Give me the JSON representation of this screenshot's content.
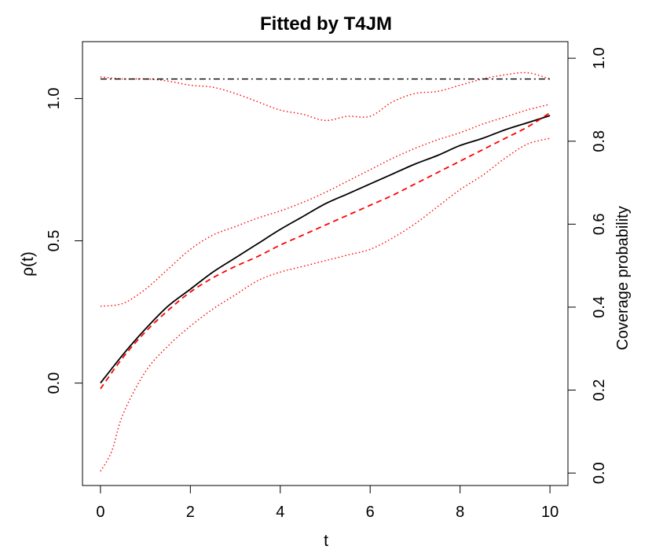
{
  "chart_data": {
    "type": "line",
    "title": "Fitted by T4JM",
    "xlabel": "t",
    "ylabel": "ρ(t)",
    "y2label": "Coverage probability",
    "xlim": [
      -0.4,
      10.4
    ],
    "ylim": [
      -0.36,
      1.2
    ],
    "y2lim": [
      -0.03,
      1.04
    ],
    "x_ticks": [
      0,
      2,
      4,
      6,
      8,
      10
    ],
    "y_ticks": [
      0.0,
      0.5,
      1.0
    ],
    "y2_ticks": [
      0.0,
      0.2,
      0.4,
      0.6,
      0.8,
      1.0
    ],
    "x_tick_labels": [
      "0",
      "2",
      "4",
      "6",
      "8",
      "10"
    ],
    "y_tick_labels": [
      "0.0",
      "0.5",
      "1.0"
    ],
    "y2_tick_labels": [
      "0.0",
      "0.2",
      "0.4",
      "0.6",
      "0.8",
      "1.0"
    ],
    "grid": false,
    "series": [
      {
        "style": "solid",
        "color": "#000000",
        "axis": "left",
        "x": [
          0,
          0.5,
          1,
          1.5,
          2,
          2.5,
          3,
          3.5,
          4,
          4.5,
          5,
          5.5,
          6,
          6.5,
          7,
          7.5,
          8,
          8.5,
          9,
          9.5,
          10
        ],
        "y": [
          0.0,
          0.1,
          0.19,
          0.27,
          0.33,
          0.39,
          0.44,
          0.49,
          0.54,
          0.585,
          0.63,
          0.665,
          0.7,
          0.735,
          0.77,
          0.8,
          0.835,
          0.86,
          0.89,
          0.915,
          0.94
        ]
      },
      {
        "style": "dashed",
        "color": "#ff0000",
        "axis": "left",
        "x": [
          0,
          0.5,
          1,
          1.5,
          2,
          2.5,
          3,
          3.5,
          4,
          4.5,
          5,
          5.5,
          6,
          6.5,
          7,
          7.5,
          8,
          8.5,
          9,
          9.5,
          10
        ],
        "y": [
          -0.02,
          0.09,
          0.18,
          0.255,
          0.32,
          0.37,
          0.41,
          0.445,
          0.485,
          0.52,
          0.555,
          0.59,
          0.625,
          0.66,
          0.7,
          0.74,
          0.78,
          0.82,
          0.86,
          0.9,
          0.95
        ]
      },
      {
        "style": "dotted",
        "color": "#ff0000",
        "axis": "left",
        "x": [
          0,
          0.5,
          1,
          1.5,
          2,
          2.5,
          3,
          3.5,
          4,
          4.5,
          5,
          5.5,
          6,
          6.5,
          7,
          7.5,
          8,
          8.5,
          9,
          9.5,
          10
        ],
        "y": [
          0.27,
          0.28,
          0.33,
          0.4,
          0.47,
          0.52,
          0.55,
          0.58,
          0.605,
          0.635,
          0.67,
          0.71,
          0.75,
          0.79,
          0.825,
          0.855,
          0.88,
          0.91,
          0.935,
          0.96,
          0.98
        ]
      },
      {
        "style": "dotted",
        "color": "#ff0000",
        "axis": "left",
        "x": [
          0,
          0.25,
          0.5,
          1,
          1.5,
          2,
          2.5,
          3,
          3.5,
          4,
          4.5,
          5,
          5.5,
          6,
          6.5,
          7,
          7.5,
          8,
          8.5,
          9,
          9.5,
          10
        ],
        "y": [
          -0.31,
          -0.24,
          -0.11,
          0.04,
          0.13,
          0.2,
          0.26,
          0.31,
          0.36,
          0.39,
          0.41,
          0.43,
          0.45,
          0.47,
          0.51,
          0.56,
          0.62,
          0.68,
          0.73,
          0.79,
          0.84,
          0.86
        ]
      },
      {
        "style": "dotted",
        "color": "#ff0000",
        "axis": "right",
        "x": [
          0,
          0.5,
          1,
          1.5,
          2,
          2.5,
          3,
          3.5,
          4,
          4.5,
          5,
          5.5,
          6,
          6.5,
          7,
          7.5,
          8,
          8.5,
          9,
          9.5,
          10
        ],
        "y": [
          0.955,
          0.95,
          0.95,
          0.945,
          0.935,
          0.93,
          0.915,
          0.895,
          0.875,
          0.865,
          0.85,
          0.86,
          0.86,
          0.895,
          0.915,
          0.92,
          0.935,
          0.95,
          0.96,
          0.965,
          0.95
        ]
      },
      {
        "style": "dashdot",
        "color": "#000000",
        "axis": "right",
        "x": [
          0,
          10
        ],
        "y": [
          0.95,
          0.95
        ]
      }
    ]
  }
}
